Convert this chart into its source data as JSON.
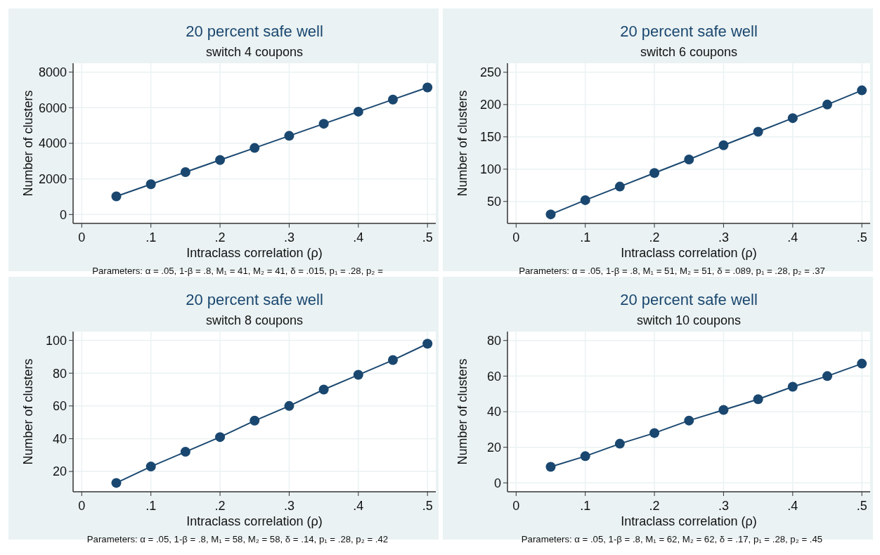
{
  "chart_data": [
    {
      "type": "line",
      "title": "20 percent safe well",
      "subtitle": "switch 4 coupons",
      "xlabel": "Intraclass correlation (ρ)",
      "ylabel": "Number of clusters",
      "annotations": [
        "Parameters: α = .05, 1-β = .8, M₁ = 41, M₂ = 41, δ = .015, p₁ = .28, p₂ ="
      ],
      "x": [
        0.05,
        0.1,
        0.15,
        0.2,
        0.25,
        0.3,
        0.35,
        0.4,
        0.45,
        0.5
      ],
      "series": [
        {
          "color": "#1a476f",
          "values": [
            1020,
            1700,
            2380,
            3060,
            3740,
            4420,
            5100,
            5780,
            6460,
            7140
          ]
        }
      ],
      "xlim": [
        -0.0125,
        0.512
      ],
      "xticks": [
        {
          "value": 0,
          "label": "0"
        },
        {
          "value": 0.1,
          "label": ".1"
        },
        {
          "value": 0.2,
          "label": ".2"
        },
        {
          "value": 0.3,
          "label": ".3"
        },
        {
          "value": 0.4,
          "label": ".4"
        },
        {
          "value": 0.5,
          "label": ".5"
        }
      ],
      "ylim": [
        -500,
        8500
      ],
      "yticks": [
        0,
        2000,
        4000,
        6000,
        8000
      ],
      "grid": true,
      "marker": "circle",
      "line_style": "solid"
    },
    {
      "type": "line",
      "title": "20 percent safe well",
      "subtitle": "switch 6 coupons",
      "xlabel": "Intraclass correlation (ρ)",
      "ylabel": "Number of clusters",
      "annotations": [
        "Parameters: α = .05, 1-β = .8, M₁ = 51, M₂ = 51, δ = .089, p₁ = .28, p₂ = .37"
      ],
      "x": [
        0.05,
        0.1,
        0.15,
        0.2,
        0.25,
        0.3,
        0.35,
        0.4,
        0.45,
        0.5
      ],
      "series": [
        {
          "color": "#1a476f",
          "values": [
            30,
            52,
            73,
            94,
            115,
            137,
            158,
            179,
            200,
            222
          ]
        }
      ],
      "xlim": [
        -0.0125,
        0.512
      ],
      "xticks": [
        {
          "value": 0,
          "label": "0"
        },
        {
          "value": 0.1,
          "label": ".1"
        },
        {
          "value": 0.2,
          "label": ".2"
        },
        {
          "value": 0.3,
          "label": ".3"
        },
        {
          "value": 0.4,
          "label": ".4"
        },
        {
          "value": 0.5,
          "label": ".5"
        }
      ],
      "ylim": [
        16,
        264
      ],
      "yticks": [
        50,
        100,
        150,
        200,
        250
      ],
      "grid": true,
      "marker": "circle",
      "line_style": "solid"
    },
    {
      "type": "line",
      "title": "20 percent safe well",
      "subtitle": "switch 8 coupons",
      "xlabel": "Intraclass correlation (ρ)",
      "ylabel": "Number of clusters",
      "annotations": [
        "Parameters: α = .05, 1-β = .8, M₁ = 58, M₂ = 58, δ = .14, p₁ = .28, p₂ = .42"
      ],
      "x": [
        0.05,
        0.1,
        0.15,
        0.2,
        0.25,
        0.3,
        0.35,
        0.4,
        0.45,
        0.5
      ],
      "series": [
        {
          "color": "#1a476f",
          "values": [
            13,
            23,
            32,
            41,
            51,
            60,
            70,
            79,
            88,
            98
          ]
        }
      ],
      "xlim": [
        -0.0125,
        0.512
      ],
      "xticks": [
        {
          "value": 0,
          "label": "0"
        },
        {
          "value": 0.1,
          "label": ".1"
        },
        {
          "value": 0.2,
          "label": ".2"
        },
        {
          "value": 0.3,
          "label": ".3"
        },
        {
          "value": 0.4,
          "label": ".4"
        },
        {
          "value": 0.5,
          "label": ".5"
        }
      ],
      "ylim": [
        7.6,
        105.4
      ],
      "yticks": [
        20,
        40,
        60,
        80,
        100
      ],
      "grid": true,
      "marker": "circle",
      "line_style": "solid"
    },
    {
      "type": "line",
      "title": "20 percent safe well",
      "subtitle": "switch 10 coupons",
      "xlabel": "Intraclass correlation (ρ)",
      "ylabel": "Number of clusters",
      "annotations": [
        "Parameters: α = .05, 1-β = .8, M₁ = 62, M₂ = 62, δ = .17, p₁ = .28, p₂ = .45"
      ],
      "x": [
        0.05,
        0.1,
        0.15,
        0.2,
        0.25,
        0.3,
        0.35,
        0.4,
        0.45,
        0.5
      ],
      "series": [
        {
          "color": "#1a476f",
          "values": [
            9,
            15,
            22,
            28,
            35,
            41,
            47,
            54,
            60,
            67
          ]
        }
      ],
      "xlim": [
        -0.0125,
        0.512
      ],
      "xticks": [
        {
          "value": 0,
          "label": "0"
        },
        {
          "value": 0.1,
          "label": ".1"
        },
        {
          "value": 0.2,
          "label": ".2"
        },
        {
          "value": 0.3,
          "label": ".3"
        },
        {
          "value": 0.4,
          "label": ".4"
        },
        {
          "value": 0.5,
          "label": ".5"
        }
      ],
      "ylim": [
        -5,
        85
      ],
      "yticks": [
        0,
        20,
        40,
        60,
        80
      ],
      "grid": true,
      "marker": "circle",
      "line_style": "solid"
    }
  ]
}
